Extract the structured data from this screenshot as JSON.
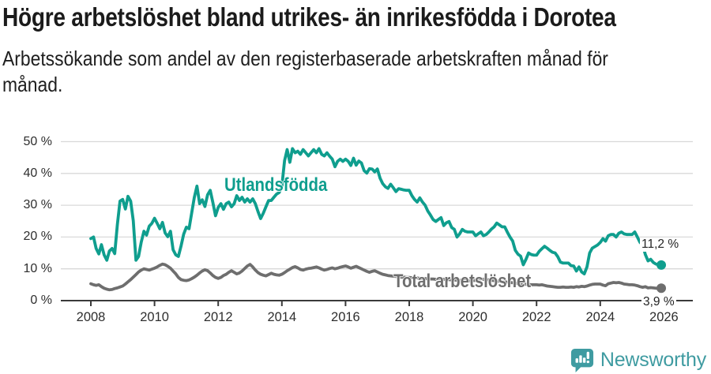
{
  "header": {
    "title": "Högre arbetslöshet bland utrikes- än inrikesfödda i Dorotea",
    "subtitle": "Arbetssökande som andel av den registerbaserade arbetskraften månad för\nmånad."
  },
  "chart_data": {
    "type": "line",
    "unit": "%",
    "region": "Dorotea",
    "frequency": "monthly",
    "start": "2008-01",
    "end": "2025-12",
    "ylim": [
      0,
      50
    ],
    "grid": "horizontal",
    "y_ticks": [
      0,
      10,
      20,
      30,
      40,
      50
    ],
    "y_tick_labels": [
      "0 %",
      "10 %",
      "20 %",
      "30 %",
      "40 %",
      "50 %"
    ],
    "x_ticks": [
      2008,
      2010,
      2012,
      2014,
      2016,
      2018,
      2020,
      2022,
      2024,
      2026
    ],
    "x_tick_labels": [
      "2008",
      "2010",
      "2012",
      "2014",
      "2016",
      "2018",
      "2020",
      "2022",
      "2024",
      "2026"
    ],
    "colors": {
      "grid": "#d9d9d9",
      "axis": "#3a3a3a",
      "tick_text": "#2e2e2e"
    },
    "series": [
      {
        "name": "Utlandsfödda",
        "color": "#0f9e8e",
        "end_label": "11,2 %",
        "end_value": 11.2,
        "values": [
          19.5,
          20.0,
          16.4,
          14.7,
          17.6,
          14.4,
          12.7,
          15.6,
          16.4,
          14.8,
          24.0,
          31.3,
          31.8,
          28.8,
          32.8,
          31.3,
          25.1,
          12.7,
          13.9,
          18.4,
          21.8,
          20.6,
          23.4,
          24.3,
          25.9,
          24.3,
          22.6,
          24.6,
          21.3,
          20.1,
          21.8,
          16.0,
          14.4,
          13.9,
          17.2,
          20.9,
          23.1,
          22.6,
          27.5,
          32.5,
          36.0,
          30.5,
          31.7,
          29.6,
          33.3,
          34.7,
          30.8,
          26.7,
          29.3,
          30.5,
          28.7,
          30.5,
          31.0,
          29.5,
          30.5,
          33.0,
          31.5,
          32.5,
          31.0,
          32.0,
          31.0,
          32.0,
          30.5,
          28.0,
          25.8,
          27.5,
          29.5,
          31.5,
          31.5,
          32.5,
          33.5,
          34.0,
          36.0,
          44.0,
          47.5,
          43.5,
          47.8,
          46.5,
          47.0,
          46.0,
          47.5,
          46.5,
          45.5,
          46.5,
          47.5,
          46.5,
          47.8,
          46.0,
          45.5,
          46.5,
          45.4,
          44.5,
          42.1,
          43.8,
          44.5,
          43.8,
          44.5,
          43.8,
          42.5,
          44.8,
          42.6,
          43.9,
          43.3,
          40.9,
          40.1,
          41.5,
          41.4,
          40.5,
          41.4,
          38.5,
          36.8,
          35.8,
          35.3,
          36.6,
          35.5,
          34.3,
          35.2,
          35.0,
          34.8,
          34.7,
          34.7,
          33.0,
          31.8,
          31.0,
          32.3,
          31.0,
          30.0,
          28.2,
          26.9,
          25.5,
          24.9,
          25.5,
          26.1,
          23.6,
          24.5,
          24.9,
          23.0,
          22.4,
          20.0,
          21.0,
          22.4,
          21.8,
          21.6,
          21.6,
          21.6,
          20.4,
          21.0,
          21.6,
          20.4,
          20.8,
          21.6,
          22.5,
          23.2,
          24.4,
          23.8,
          23.2,
          23.2,
          21.5,
          20.0,
          18.7,
          15.8,
          14.6,
          14.0,
          11.3,
          13.0,
          15.0,
          14.5,
          14.3,
          14.3,
          15.5,
          16.3,
          17.1,
          16.5,
          15.8,
          15.2,
          15.0,
          13.8,
          12.1,
          11.8,
          11.8,
          11.8,
          11.0,
          10.9,
          9.3,
          10.6,
          9.0,
          8.4,
          10.6,
          15.0,
          16.5,
          17.0,
          17.5,
          18.3,
          19.5,
          18.7,
          20.4,
          20.8,
          20.8,
          20.0,
          21.2,
          21.6,
          21.0,
          20.8,
          20.8,
          20.8,
          21.6,
          20.0,
          18.3,
          17.5,
          14.5,
          12.5,
          13.0,
          12.0,
          11.5,
          11.4,
          11.2
        ]
      },
      {
        "name": "Total arbetslöshet",
        "color": "#6e6e6e",
        "end_label": "3,9 %",
        "end_value": 3.9,
        "values": [
          5.3,
          5.0,
          4.8,
          5.0,
          4.4,
          3.9,
          3.6,
          3.4,
          3.5,
          3.8,
          4.0,
          4.3,
          4.6,
          5.2,
          5.9,
          6.6,
          7.4,
          8.2,
          9.0,
          9.6,
          10.0,
          9.8,
          9.6,
          9.9,
          10.2,
          10.6,
          11.1,
          11.5,
          11.3,
          10.8,
          10.2,
          9.3,
          8.4,
          7.3,
          6.6,
          6.4,
          6.3,
          6.5,
          6.9,
          7.4,
          8.0,
          8.7,
          9.3,
          9.7,
          9.4,
          8.7,
          7.9,
          7.3,
          7.0,
          7.3,
          7.9,
          8.3,
          8.9,
          9.4,
          8.9,
          8.4,
          8.7,
          9.3,
          10.1,
          10.9,
          11.4,
          10.6,
          9.6,
          8.8,
          8.3,
          8.0,
          7.8,
          8.2,
          8.6,
          8.3,
          8.1,
          8.0,
          8.3,
          8.8,
          9.4,
          9.9,
          10.4,
          10.7,
          10.3,
          9.8,
          9.6,
          9.9,
          10.1,
          10.2,
          10.4,
          10.6,
          10.3,
          9.9,
          9.6,
          9.8,
          10.1,
          10.3,
          10.0,
          10.2,
          10.5,
          10.7,
          10.9,
          10.6,
          10.2,
          10.5,
          10.8,
          10.4,
          10.0,
          9.6,
          9.2,
          8.9,
          9.2,
          9.4,
          9.0,
          8.6,
          8.3,
          8.1,
          7.9,
          7.8,
          7.7,
          7.6,
          7.5,
          7.4,
          7.4,
          7.3,
          7.3,
          7.2,
          7.1,
          7.1,
          7.0,
          7.0,
          6.9,
          6.9,
          6.8,
          6.8,
          6.7,
          6.7,
          6.8,
          6.7,
          6.6,
          6.6,
          6.5,
          6.5,
          6.4,
          6.4,
          6.3,
          6.3,
          6.2,
          6.2,
          6.3,
          6.4,
          6.6,
          6.8,
          6.7,
          6.6,
          6.5,
          6.4,
          6.3,
          6.2,
          6.1,
          6.0,
          5.9,
          5.8,
          5.7,
          5.6,
          5.5,
          5.4,
          5.3,
          5.2,
          5.1,
          5.1,
          5.0,
          5.0,
          5.0,
          4.9,
          5.0,
          4.8,
          4.6,
          4.5,
          4.4,
          4.3,
          4.2,
          4.2,
          4.3,
          4.2,
          4.2,
          4.3,
          4.2,
          4.4,
          4.3,
          4.5,
          4.4,
          4.6,
          4.9,
          5.1,
          5.2,
          5.2,
          5.2,
          4.9,
          4.7,
          5.3,
          5.5,
          5.7,
          5.6,
          5.7,
          5.5,
          5.2,
          5.1,
          5.0,
          5.0,
          4.9,
          4.7,
          4.4,
          4.2,
          4.4,
          4.0,
          4.1,
          4.0,
          3.9,
          3.9,
          3.9
        ]
      }
    ]
  },
  "footer": {
    "brand": "Newsworthy",
    "logo_color": "#3f9ba1"
  }
}
